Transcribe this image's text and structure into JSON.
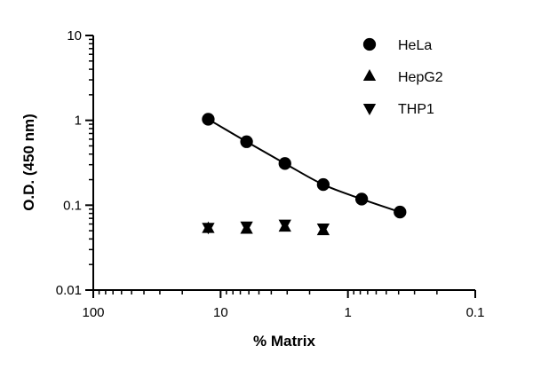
{
  "chart_data": {
    "type": "scatter",
    "xlabel": "% Matrix",
    "ylabel": "O.D. (450 nm)",
    "xscale": "log",
    "yscale": "log",
    "x_reversed": true,
    "xlim": [
      100,
      0.1
    ],
    "ylim": [
      0.01,
      10
    ],
    "x_ticks": [
      {
        "value": 100,
        "label": "100"
      },
      {
        "value": 10,
        "label": "10"
      },
      {
        "value": 1,
        "label": "1"
      },
      {
        "value": 0.1,
        "label": "0.1"
      }
    ],
    "y_ticks": [
      {
        "value": 10,
        "label": "10"
      },
      {
        "value": 1,
        "label": "1"
      },
      {
        "value": 0.1,
        "label": "0.1"
      },
      {
        "value": 0.01,
        "label": "0.01"
      }
    ],
    "grid": false,
    "legend_position": "top-right",
    "series": [
      {
        "name": "HeLa",
        "marker": "circle",
        "fit_line": true,
        "points": [
          {
            "x": 12.5,
            "y": 1.03
          },
          {
            "x": 6.25,
            "y": 0.56
          },
          {
            "x": 3.125,
            "y": 0.31
          },
          {
            "x": 1.5625,
            "y": 0.175
          },
          {
            "x": 0.78,
            "y": 0.118
          },
          {
            "x": 0.39,
            "y": 0.083
          }
        ]
      },
      {
        "name": "HepG2",
        "marker": "triangle-up",
        "fit_line": false,
        "points": [
          {
            "x": 12.5,
            "y": 0.053
          },
          {
            "x": 6.25,
            "y": 0.052
          },
          {
            "x": 3.125,
            "y": 0.055
          },
          {
            "x": 1.5625,
            "y": 0.05
          }
        ]
      },
      {
        "name": "THP1",
        "marker": "triangle-down",
        "fit_line": false,
        "points": [
          {
            "x": 12.5,
            "y": 0.055
          },
          {
            "x": 6.25,
            "y": 0.057
          },
          {
            "x": 3.125,
            "y": 0.06
          },
          {
            "x": 1.5625,
            "y": 0.054
          }
        ]
      }
    ]
  }
}
